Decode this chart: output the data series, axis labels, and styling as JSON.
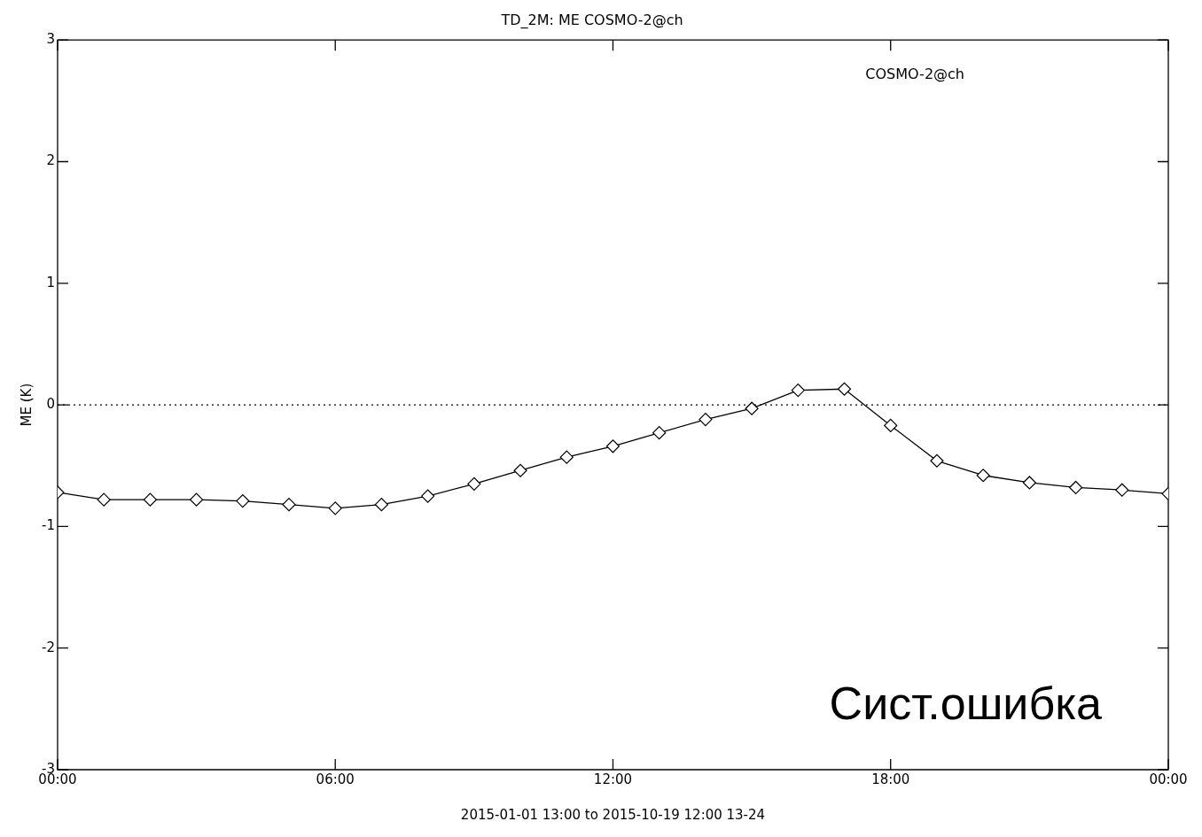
{
  "chart_data": {
    "type": "line",
    "title": "TD_2M: ME COSMO-2@ch",
    "ylabel": "ME (K)",
    "x": [
      0,
      1,
      2,
      3,
      4,
      5,
      6,
      7,
      8,
      9,
      10,
      11,
      12,
      13,
      14,
      15,
      16,
      17,
      18,
      19,
      20,
      21,
      22,
      23,
      24
    ],
    "series": [
      {
        "name": "COSMO-2@ch",
        "color": "#000000",
        "values": [
          -0.72,
          -0.78,
          -0.78,
          -0.78,
          -0.79,
          -0.82,
          -0.85,
          -0.82,
          -0.75,
          -0.65,
          -0.54,
          -0.43,
          -0.34,
          -0.23,
          -0.12,
          -0.03,
          0.12,
          0.13,
          -0.17,
          -0.46,
          -0.58,
          -0.64,
          -0.68,
          -0.7,
          -0.73
        ]
      }
    ],
    "xlim": [
      0,
      24
    ],
    "xticks": [
      {
        "value": 0,
        "label": "00:00"
      },
      {
        "value": 6,
        "label": "06:00"
      },
      {
        "value": 12,
        "label": "12:00"
      },
      {
        "value": 18,
        "label": "18:00"
      },
      {
        "value": 24,
        "label": "00:00"
      }
    ],
    "ylim": [
      -3,
      3
    ],
    "yticks": [
      -3,
      -2,
      -1,
      0,
      1,
      2,
      3
    ],
    "ref_lines": [
      {
        "axis": "y",
        "value": 0,
        "line_style": "dotted",
        "color": "#000000"
      }
    ],
    "annotations": [
      "2015-01-01 13:00 to 2015-10-19 12:00 13-24",
      "Сист.ошибка"
    ],
    "marker": "diamond",
    "line_style": "solid",
    "legend": "top right",
    "grid": false
  }
}
